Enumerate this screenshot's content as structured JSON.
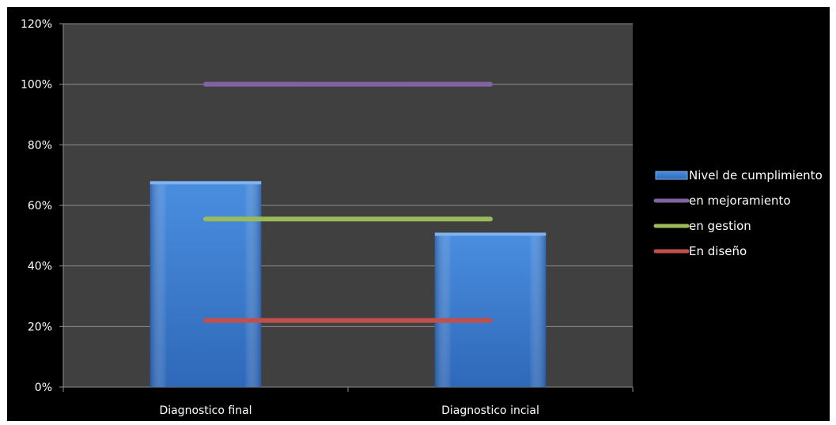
{
  "chart_data": {
    "type": "bar",
    "categories": [
      "Diagnostico final",
      "Diagnostico incial"
    ],
    "ylim": [
      0,
      1.2
    ],
    "yticks": [
      0,
      0.2,
      0.4,
      0.6,
      0.8,
      1.0,
      1.2
    ],
    "ytick_labels": [
      "0%",
      "20%",
      "40%",
      "60%",
      "80%",
      "100%",
      "120%"
    ],
    "grid": true,
    "legend_position": "right",
    "series": [
      {
        "name": "Nivel de cumplimiento",
        "kind": "bar",
        "values": [
          0.68,
          0.51
        ],
        "color": "#3e7fd4"
      },
      {
        "name": "en mejoramiento",
        "kind": "line",
        "values": [
          1.0,
          1.0
        ],
        "color": "#8064a2"
      },
      {
        "name": "en gestion",
        "kind": "line",
        "values": [
          0.555,
          0.555
        ],
        "color": "#9bbb59"
      },
      {
        "name": "En diseño",
        "kind": "line",
        "values": [
          0.22,
          0.22
        ],
        "color": "#c0504d"
      }
    ],
    "colors": {
      "background": "#000000",
      "plot_area": "#404040",
      "gridline": "#8c8c8c",
      "text": "#ffffff"
    }
  }
}
